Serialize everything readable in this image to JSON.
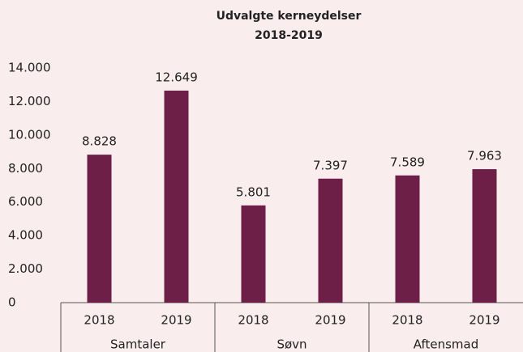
{
  "chart_data": {
    "type": "bar",
    "title": "Udvalgte kerneydelser",
    "subtitle": "2018-2019",
    "color": "#6d1f47",
    "grid": false,
    "groups": [
      {
        "name": "Samtaler",
        "categories": [
          "2018",
          "2019"
        ],
        "values": [
          8828,
          12649
        ],
        "value_labels": [
          "8.828",
          "12.649"
        ]
      },
      {
        "name": "Søvn",
        "categories": [
          "2018",
          "2019"
        ],
        "values": [
          5801,
          7397
        ],
        "value_labels": [
          "5.801",
          "7.397"
        ]
      },
      {
        "name": "Aftensmad",
        "categories": [
          "2018",
          "2019"
        ],
        "values": [
          7589,
          7963
        ],
        "value_labels": [
          "7.589",
          "7.963"
        ]
      }
    ],
    "ylim": [
      0,
      14000
    ],
    "yticks": [
      0,
      {
        "value": 2000,
        "label": "2.000"
      },
      {
        "value": 4000,
        "label": "4.000"
      },
      {
        "value": 6000,
        "label": "6.000"
      },
      {
        "value": 8000,
        "label": "8.000"
      },
      {
        "value": 10000,
        "label": "10.000"
      },
      {
        "value": 12000,
        "label": "12.000"
      },
      {
        "value": 14000,
        "label": "14.000"
      }
    ]
  }
}
